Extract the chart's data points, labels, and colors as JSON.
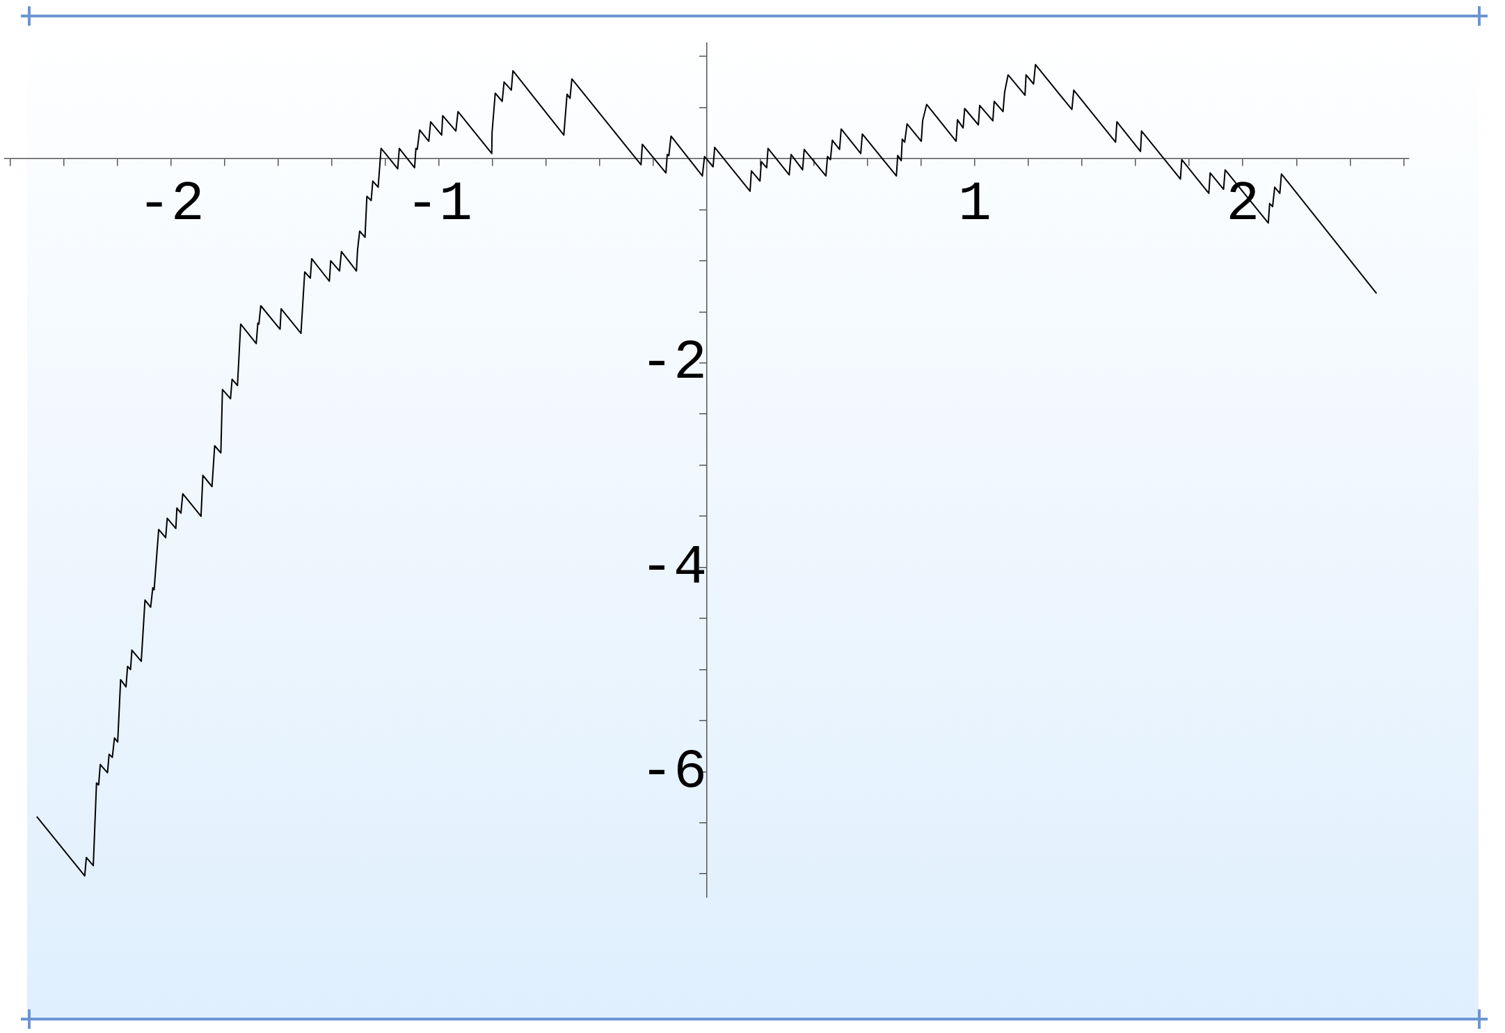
{
  "chart_data": {
    "type": "line",
    "x": [
      -2.501,
      -2.322,
      -2.316,
      -2.29,
      -2.278,
      -2.27,
      -2.264,
      -2.237,
      -2.231,
      -2.219,
      -2.211,
      -2.199,
      -2.188,
      -2.168,
      -2.162,
      -2.151,
      -2.146,
      -2.111,
      -2.097,
      -2.076,
      -2.068,
      -2.063,
      -2.046,
      -2.02,
      -2.014,
      -1.982,
      -1.978,
      -1.963,
      -1.956,
      -1.888,
      -1.881,
      -1.847,
      -1.837,
      -1.814,
      -1.808,
      -1.778,
      -1.772,
      -1.752,
      -1.74,
      -1.682,
      -1.676,
      -1.672,
      -1.665,
      -1.593,
      -1.589,
      -1.515,
      -1.501,
      -1.48,
      -1.475,
      -1.409,
      -1.404,
      -1.371,
      -1.364,
      -1.308,
      -1.304,
      -1.296,
      -1.276,
      -1.269,
      -1.253,
      -1.247,
      -1.227,
      -1.216,
      -1.2,
      -1.154,
      -1.148,
      -1.091,
      -1.086,
      -1.081,
      -1.072,
      -1.038,
      -1.031,
      -0.99,
      -0.986,
      -0.937,
      -0.929,
      -0.803,
      -0.802,
      -0.79,
      -0.764,
      -0.757,
      -0.73,
      -0.724,
      -0.534,
      -0.522,
      -0.511,
      -0.504,
      -0.246,
      -0.241,
      -0.153,
      -0.148,
      -0.142,
      -0.134,
      -0.017,
      -0.009,
      0.023,
      0.029,
      0.161,
      0.166,
      0.198,
      0.203,
      0.223,
      0.228,
      0.307,
      0.314,
      0.357,
      0.363,
      0.444,
      0.45,
      0.461,
      0.468,
      0.495,
      0.501,
      0.574,
      0.58,
      0.707,
      0.712,
      0.725,
      0.729,
      0.738,
      0.747,
      0.8,
      0.805,
      0.82,
      0.93,
      0.935,
      0.956,
      0.962,
      1.013,
      1.018,
      1.067,
      1.072,
      1.105,
      1.111,
      1.124,
      1.187,
      1.191,
      1.219,
      1.226,
      1.362,
      1.369,
      1.525,
      1.53,
      1.618,
      1.622,
      1.767,
      1.772,
      1.873,
      1.878,
      1.928,
      1.934,
      2.095,
      2.1,
      2.111,
      2.119,
      2.138,
      2.144,
      2.499
    ],
    "series": [
      {
        "color": "#000000",
        "values": [
          -6.44,
          -7.02,
          -6.84,
          -6.92,
          -6.11,
          -6.13,
          -5.93,
          -6.01,
          -5.83,
          -5.86,
          -5.67,
          -5.71,
          -5.1,
          -5.17,
          -4.97,
          -5.0,
          -4.81,
          -4.92,
          -4.32,
          -4.39,
          -4.2,
          -4.22,
          -3.63,
          -3.71,
          -3.52,
          -3.62,
          -3.42,
          -3.47,
          -3.28,
          -3.5,
          -3.1,
          -3.21,
          -2.81,
          -2.88,
          -2.26,
          -2.35,
          -2.16,
          -2.22,
          -1.62,
          -1.81,
          -1.61,
          -1.62,
          -1.44,
          -1.67,
          -1.47,
          -1.71,
          -1.11,
          -1.17,
          -0.98,
          -1.2,
          -1.0,
          -1.1,
          -0.91,
          -1.1,
          -0.9,
          -0.71,
          -0.77,
          -0.37,
          -0.41,
          -0.22,
          -0.28,
          0.1,
          0.05,
          -0.1,
          0.1,
          -0.09,
          0.1,
          0.09,
          0.28,
          0.17,
          0.36,
          0.23,
          0.42,
          0.27,
          0.46,
          0.05,
          0.25,
          0.64,
          0.56,
          0.75,
          0.67,
          0.86,
          0.23,
          0.63,
          0.59,
          0.78,
          -0.06,
          0.14,
          -0.14,
          0.04,
          0.03,
          0.22,
          -0.17,
          0.02,
          -0.08,
          0.11,
          -0.32,
          -0.12,
          -0.22,
          -0.03,
          -0.09,
          0.1,
          -0.16,
          0.04,
          -0.11,
          0.09,
          -0.17,
          0.02,
          -0.01,
          0.18,
          0.09,
          0.29,
          0.05,
          0.24,
          -0.17,
          0.03,
          -0.02,
          0.19,
          0.16,
          0.34,
          0.17,
          0.37,
          0.53,
          0.17,
          0.38,
          0.3,
          0.49,
          0.33,
          0.52,
          0.37,
          0.56,
          0.46,
          0.65,
          0.82,
          0.62,
          0.82,
          0.73,
          0.92,
          0.48,
          0.67,
          0.16,
          0.36,
          0.07,
          0.27,
          -0.2,
          -0.01,
          -0.34,
          -0.14,
          -0.3,
          -0.11,
          -0.63,
          -0.44,
          -0.47,
          -0.28,
          -0.34,
          -0.15,
          -1.32
        ]
      }
    ],
    "xlim": [
      -2.62,
      2.62
    ],
    "ylim": [
      -7.23,
      1.13
    ],
    "xticks": [
      {
        "value": -2.6,
        "label": null
      },
      {
        "value": -2.4,
        "label": null
      },
      {
        "value": -2.2,
        "label": null
      },
      -2,
      {
        "value": -1.8,
        "label": null
      },
      {
        "value": -1.6,
        "label": null
      },
      {
        "value": -1.4,
        "label": null
      },
      {
        "value": -1.2,
        "label": null
      },
      -1,
      {
        "value": -0.8,
        "label": null
      },
      {
        "value": -0.6,
        "label": null
      },
      {
        "value": -0.4,
        "label": null
      },
      {
        "value": -0.2,
        "label": null
      },
      {
        "value": 0.2,
        "label": null
      },
      {
        "value": 0.4,
        "label": null
      },
      {
        "value": 0.6,
        "label": null
      },
      {
        "value": 0.8,
        "label": null
      },
      1,
      {
        "value": 1.2,
        "label": null
      },
      {
        "value": 1.4,
        "label": null
      },
      {
        "value": 1.6,
        "label": null
      },
      {
        "value": 1.8,
        "label": null
      },
      2,
      {
        "value": 2.2,
        "label": null
      },
      {
        "value": 2.4,
        "label": null
      },
      {
        "value": 2.6,
        "label": null
      }
    ],
    "yticks": [
      {
        "value": -7,
        "label": null
      },
      {
        "value": -6.5,
        "label": null
      },
      -6,
      {
        "value": -5.5,
        "label": null
      },
      {
        "value": -5,
        "label": null
      },
      {
        "value": -4.5,
        "label": null
      },
      -4,
      {
        "value": -3.5,
        "label": null
      },
      {
        "value": -3,
        "label": null
      },
      {
        "value": -2.5,
        "label": null
      },
      -2,
      {
        "value": -1.5,
        "label": null
      },
      {
        "value": -1,
        "label": null
      },
      {
        "value": -0.5,
        "label": null
      },
      {
        "value": 0.5,
        "label": null
      },
      {
        "value": 1,
        "label": null
      }
    ],
    "grid": false,
    "legend": false,
    "marker": "none",
    "line_style": "solid"
  }
}
